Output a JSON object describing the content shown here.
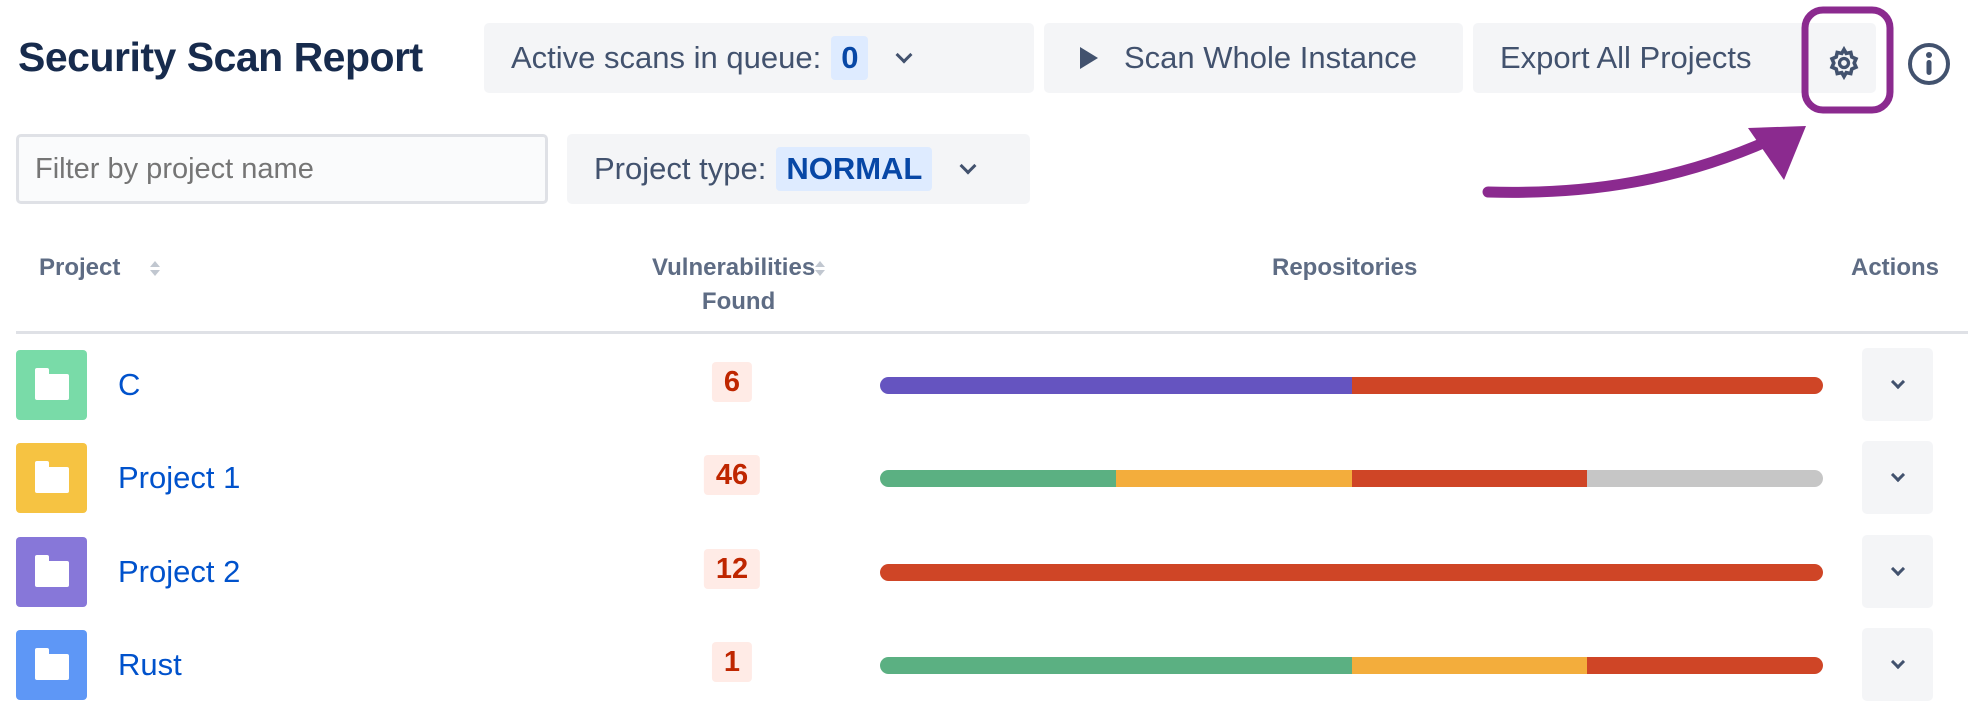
{
  "header": {
    "title": "Security Scan Report",
    "active_scans_label": "Active scans in queue:",
    "active_scans_count": "0",
    "scan_button": "Scan Whole Instance",
    "export_button": "Export All Projects"
  },
  "filters": {
    "search_placeholder": "Filter by project name",
    "project_type_label": "Project type:",
    "project_type_value": "NORMAL"
  },
  "table": {
    "columns": [
      "Project",
      "Vulnerabilities",
      "Found",
      "Repositories",
      "Actions"
    ],
    "rows": [
      {
        "name": "C",
        "vulns": "6",
        "icon_color": "#79dba8",
        "segments": [
          {
            "color": "#6554c0",
            "pct": 50
          },
          {
            "color": "#cf4526",
            "pct": 50
          }
        ]
      },
      {
        "name": "Project 1",
        "vulns": "46",
        "icon_color": "#f6c342",
        "segments": [
          {
            "color": "#5bb082",
            "pct": 25
          },
          {
            "color": "#f3ad3c",
            "pct": 25
          },
          {
            "color": "#cf4526",
            "pct": 25
          },
          {
            "color": "#c6c6c6",
            "pct": 25
          }
        ]
      },
      {
        "name": "Project 2",
        "vulns": "12",
        "icon_color": "#8777d9",
        "segments": [
          {
            "color": "#cf4526",
            "pct": 100
          }
        ]
      },
      {
        "name": "Rust",
        "vulns": "1",
        "icon_color": "#5e97f6",
        "segments": [
          {
            "color": "#5bb082",
            "pct": 50
          },
          {
            "color": "#f3ad3c",
            "pct": 25
          },
          {
            "color": "#cf4526",
            "pct": 25
          }
        ]
      }
    ]
  },
  "annotation_color": "#8b2a8f"
}
